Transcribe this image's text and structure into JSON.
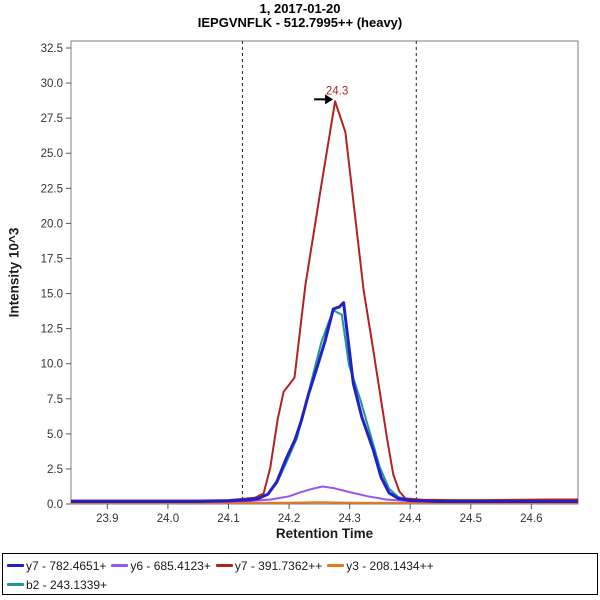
{
  "title": {
    "line1": "1, 2017-01-20",
    "line2": "IEPGVNFLK - 512.7995++ (heavy)"
  },
  "chart_data": {
    "type": "line",
    "title": "1, 2017-01-20",
    "subtitle": "IEPGVNFLK - 512.7995++ (heavy)",
    "xlabel": "Retention Time",
    "ylabel": "Intensity 10^3",
    "xlim": [
      23.84,
      24.677
    ],
    "ylim": [
      0,
      33.0
    ],
    "xticks": [
      23.9,
      24.0,
      24.1,
      24.2,
      24.3,
      24.4,
      24.5,
      24.6
    ],
    "yticks": [
      0.0,
      2.5,
      5.0,
      7.5,
      10.0,
      12.5,
      15.0,
      17.5,
      20.0,
      22.5,
      25.0,
      27.5,
      30.0,
      32.5
    ],
    "grid": false,
    "legend_position": "bottom",
    "plot_border_color": "#7f7f7f",
    "peak_boundaries": {
      "style": "dashed-vertical",
      "color": "#222222",
      "x": [
        24.123,
        24.41
      ]
    },
    "annotation": {
      "text": "24.3",
      "x": 24.276,
      "y": 28.7,
      "text_color": "#B22222",
      "arrow": "black-right-arrow"
    },
    "series": [
      {
        "name": "y7 - 782.4651+",
        "color": "#2020CC",
        "width": 3,
        "points": [
          [
            23.84,
            0.18
          ],
          [
            23.9,
            0.18
          ],
          [
            23.95,
            0.18
          ],
          [
            24.0,
            0.18
          ],
          [
            24.05,
            0.18
          ],
          [
            24.1,
            0.22
          ],
          [
            24.136,
            0.3
          ],
          [
            24.15,
            0.4
          ],
          [
            24.165,
            0.7
          ],
          [
            24.18,
            1.6
          ],
          [
            24.195,
            3.2
          ],
          [
            24.21,
            4.6
          ],
          [
            24.22,
            5.9
          ],
          [
            24.232,
            7.8
          ],
          [
            24.246,
            9.7
          ],
          [
            24.26,
            11.7
          ],
          [
            24.273,
            13.9
          ],
          [
            24.283,
            14.05
          ],
          [
            24.29,
            14.35
          ],
          [
            24.306,
            8.6
          ],
          [
            24.32,
            6.2
          ],
          [
            24.339,
            3.85
          ],
          [
            24.352,
            1.9
          ],
          [
            24.365,
            0.8
          ],
          [
            24.38,
            0.4
          ],
          [
            24.4,
            0.25
          ],
          [
            24.45,
            0.18
          ],
          [
            24.5,
            0.18
          ],
          [
            24.55,
            0.18
          ],
          [
            24.6,
            0.18
          ],
          [
            24.677,
            0.18
          ]
        ]
      },
      {
        "name": "y6 - 685.4123+",
        "color": "#9955EE",
        "width": 2,
        "points": [
          [
            23.84,
            0.14
          ],
          [
            23.9,
            0.14
          ],
          [
            23.95,
            0.14
          ],
          [
            24.0,
            0.14
          ],
          [
            24.05,
            0.14
          ],
          [
            24.1,
            0.16
          ],
          [
            24.14,
            0.22
          ],
          [
            24.17,
            0.32
          ],
          [
            24.2,
            0.55
          ],
          [
            24.22,
            0.85
          ],
          [
            24.24,
            1.1
          ],
          [
            24.255,
            1.25
          ],
          [
            24.275,
            1.12
          ],
          [
            24.3,
            0.85
          ],
          [
            24.33,
            0.55
          ],
          [
            24.36,
            0.32
          ],
          [
            24.4,
            0.2
          ],
          [
            24.45,
            0.15
          ],
          [
            24.5,
            0.14
          ],
          [
            24.55,
            0.14
          ],
          [
            24.6,
            0.14
          ],
          [
            24.677,
            0.14
          ]
        ]
      },
      {
        "name": "y7 - 391.7362++",
        "color": "#B22222",
        "width": 2,
        "points": [
          [
            23.84,
            0.25
          ],
          [
            23.9,
            0.25
          ],
          [
            23.95,
            0.25
          ],
          [
            24.0,
            0.25
          ],
          [
            24.05,
            0.25
          ],
          [
            24.1,
            0.28
          ],
          [
            24.123,
            0.36
          ],
          [
            24.144,
            0.45
          ],
          [
            24.158,
            0.75
          ],
          [
            24.169,
            2.6
          ],
          [
            24.181,
            6.0
          ],
          [
            24.191,
            8.0
          ],
          [
            24.209,
            9.0
          ],
          [
            24.227,
            15.6
          ],
          [
            24.252,
            22.4
          ],
          [
            24.276,
            28.7
          ],
          [
            24.293,
            26.5
          ],
          [
            24.323,
            15.25
          ],
          [
            24.337,
            11.5
          ],
          [
            24.352,
            7.4
          ],
          [
            24.362,
            4.6
          ],
          [
            24.372,
            2.1
          ],
          [
            24.382,
            0.9
          ],
          [
            24.392,
            0.4
          ],
          [
            24.42,
            0.3
          ],
          [
            24.47,
            0.28
          ],
          [
            24.52,
            0.28
          ],
          [
            24.58,
            0.3
          ],
          [
            24.63,
            0.32
          ],
          [
            24.677,
            0.32
          ]
        ]
      },
      {
        "name": "y3 - 208.1434++",
        "color": "#E87820",
        "width": 2,
        "points": [
          [
            23.84,
            0.07
          ],
          [
            24.0,
            0.07
          ],
          [
            24.1,
            0.07
          ],
          [
            24.2,
            0.09
          ],
          [
            24.25,
            0.12
          ],
          [
            24.3,
            0.09
          ],
          [
            24.4,
            0.07
          ],
          [
            24.5,
            0.07
          ],
          [
            24.6,
            0.07
          ],
          [
            24.677,
            0.07
          ]
        ]
      },
      {
        "name": "b2 - 243.1339+",
        "color": "#209890",
        "width": 2,
        "points": [
          [
            23.84,
            0.22
          ],
          [
            23.9,
            0.22
          ],
          [
            23.95,
            0.22
          ],
          [
            24.0,
            0.22
          ],
          [
            24.05,
            0.22
          ],
          [
            24.1,
            0.25
          ],
          [
            24.136,
            0.32
          ],
          [
            24.15,
            0.42
          ],
          [
            24.165,
            0.68
          ],
          [
            24.18,
            1.5
          ],
          [
            24.196,
            3.0
          ],
          [
            24.213,
            4.7
          ],
          [
            24.227,
            7.0
          ],
          [
            24.24,
            9.3
          ],
          [
            24.253,
            11.5
          ],
          [
            24.265,
            12.9
          ],
          [
            24.273,
            13.8
          ],
          [
            24.287,
            13.5
          ],
          [
            24.299,
            9.9
          ],
          [
            24.318,
            7.4
          ],
          [
            24.334,
            5.0
          ],
          [
            24.35,
            2.6
          ],
          [
            24.365,
            1.1
          ],
          [
            24.38,
            0.5
          ],
          [
            24.4,
            0.25
          ],
          [
            24.45,
            0.2
          ],
          [
            24.5,
            0.2
          ],
          [
            24.55,
            0.2
          ],
          [
            24.6,
            0.2
          ],
          [
            24.677,
            0.2
          ]
        ]
      }
    ],
    "legend_rows": [
      4,
      1
    ]
  }
}
